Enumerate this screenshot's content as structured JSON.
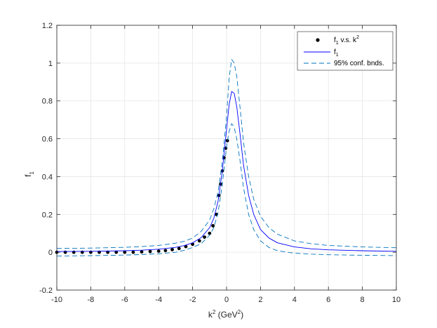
{
  "chart_data": {
    "type": "scatter",
    "xlabel": {
      "base": "k",
      "sup": "2",
      "mid": " (GeV",
      "sup2": "2",
      "tail": ")"
    },
    "ylabel": {
      "base": "f",
      "sub": "1"
    },
    "xlim": [
      -10,
      10
    ],
    "ylim": [
      -0.2,
      1.2
    ],
    "xticks": [
      -10,
      -8,
      -6,
      -4,
      -2,
      0,
      2,
      4,
      6,
      8,
      10
    ],
    "yticks": [
      -0.2,
      0,
      0.2,
      0.4,
      0.6,
      0.8,
      1,
      1.2
    ],
    "xtick_labels": [
      "-10",
      "-8",
      "-6",
      "-4",
      "-2",
      "0",
      "2",
      "4",
      "6",
      "8",
      "10"
    ],
    "ytick_labels": [
      "-0.2",
      "0",
      "0.2",
      "0.4",
      "0.6",
      "0.8",
      "1",
      "1.2"
    ],
    "grid": true,
    "legend_position": "top-right",
    "colors": {
      "points": "#000000",
      "fit": "#0000ff",
      "bounds": "#0072bd",
      "grid": "#e6e6e6",
      "axis": "#262626"
    },
    "series": [
      {
        "name": {
          "base": "f",
          "sub": "1",
          "mid": " v.s. k",
          "sup": "2"
        },
        "kind": "points",
        "x": [
          -10.0,
          -9.5,
          -9.0,
          -8.5,
          -8.0,
          -7.5,
          -7.0,
          -6.5,
          -6.0,
          -5.5,
          -5.0,
          -4.5,
          -4.0,
          -3.6,
          -3.2,
          -2.8,
          -2.4,
          -2.0,
          -1.6,
          -1.3,
          -1.0,
          -0.8,
          -0.6,
          -0.45,
          -0.35,
          -0.25,
          -0.15,
          -0.05,
          0.05
        ],
        "y": [
          0.0,
          0.0,
          0.0,
          0.0,
          0.0,
          0.0,
          0.0,
          0.0,
          0.0,
          0.0,
          0.002,
          0.004,
          0.006,
          0.009,
          0.014,
          0.02,
          0.03,
          0.042,
          0.06,
          0.08,
          0.1,
          0.14,
          0.2,
          0.3,
          0.36,
          0.43,
          0.5,
          0.55,
          0.59
        ]
      },
      {
        "name": {
          "base": "f",
          "sub": "1"
        },
        "kind": "line",
        "x": [
          -10,
          -8,
          -6,
          -5,
          -4,
          -3,
          -2.5,
          -2,
          -1.5,
          -1,
          -0.75,
          -0.5,
          -0.25,
          0,
          0.15,
          0.3,
          0.45,
          0.6,
          0.8,
          1,
          1.3,
          1.6,
          2,
          2.5,
          3,
          4,
          5,
          6,
          8,
          10
        ],
        "y": [
          0.004,
          0.005,
          0.008,
          0.011,
          0.016,
          0.026,
          0.035,
          0.05,
          0.077,
          0.13,
          0.18,
          0.27,
          0.43,
          0.65,
          0.78,
          0.85,
          0.84,
          0.77,
          0.62,
          0.46,
          0.3,
          0.2,
          0.12,
          0.075,
          0.05,
          0.028,
          0.018,
          0.013,
          0.008,
          0.005
        ]
      },
      {
        "name": "95% conf. bnds.",
        "kind": "dashed",
        "x": [
          -10,
          -8,
          -6,
          -5,
          -4,
          -3,
          -2.5,
          -2,
          -1.5,
          -1,
          -0.75,
          -0.5,
          -0.25,
          0,
          0.15,
          0.3,
          0.45,
          0.6,
          0.8,
          1,
          1.3,
          1.6,
          2,
          2.5,
          3,
          4,
          5,
          6,
          8,
          10
        ],
        "y": [
          0.02,
          0.022,
          0.026,
          0.03,
          0.036,
          0.048,
          0.058,
          0.075,
          0.11,
          0.17,
          0.23,
          0.32,
          0.48,
          0.72,
          0.92,
          1.02,
          1.0,
          0.93,
          0.76,
          0.58,
          0.4,
          0.28,
          0.19,
          0.13,
          0.095,
          0.06,
          0.045,
          0.036,
          0.028,
          0.024
        ]
      },
      {
        "name": "",
        "kind": "dashed",
        "x": [
          -10,
          -8,
          -6,
          -5,
          -4,
          -3,
          -2.5,
          -2,
          -1.5,
          -1,
          -0.75,
          -0.5,
          -0.25,
          0,
          0.15,
          0.3,
          0.45,
          0.6,
          0.8,
          1,
          1.3,
          1.6,
          2,
          2.5,
          3,
          4,
          5,
          6,
          8,
          10
        ],
        "y": [
          -0.02,
          -0.018,
          -0.015,
          -0.012,
          -0.008,
          0.0,
          0.01,
          0.025,
          0.045,
          0.09,
          0.13,
          0.21,
          0.36,
          0.56,
          0.64,
          0.68,
          0.66,
          0.6,
          0.48,
          0.34,
          0.2,
          0.12,
          0.06,
          0.025,
          0.008,
          -0.005,
          -0.01,
          -0.013,
          -0.016,
          -0.018
        ]
      }
    ]
  }
}
